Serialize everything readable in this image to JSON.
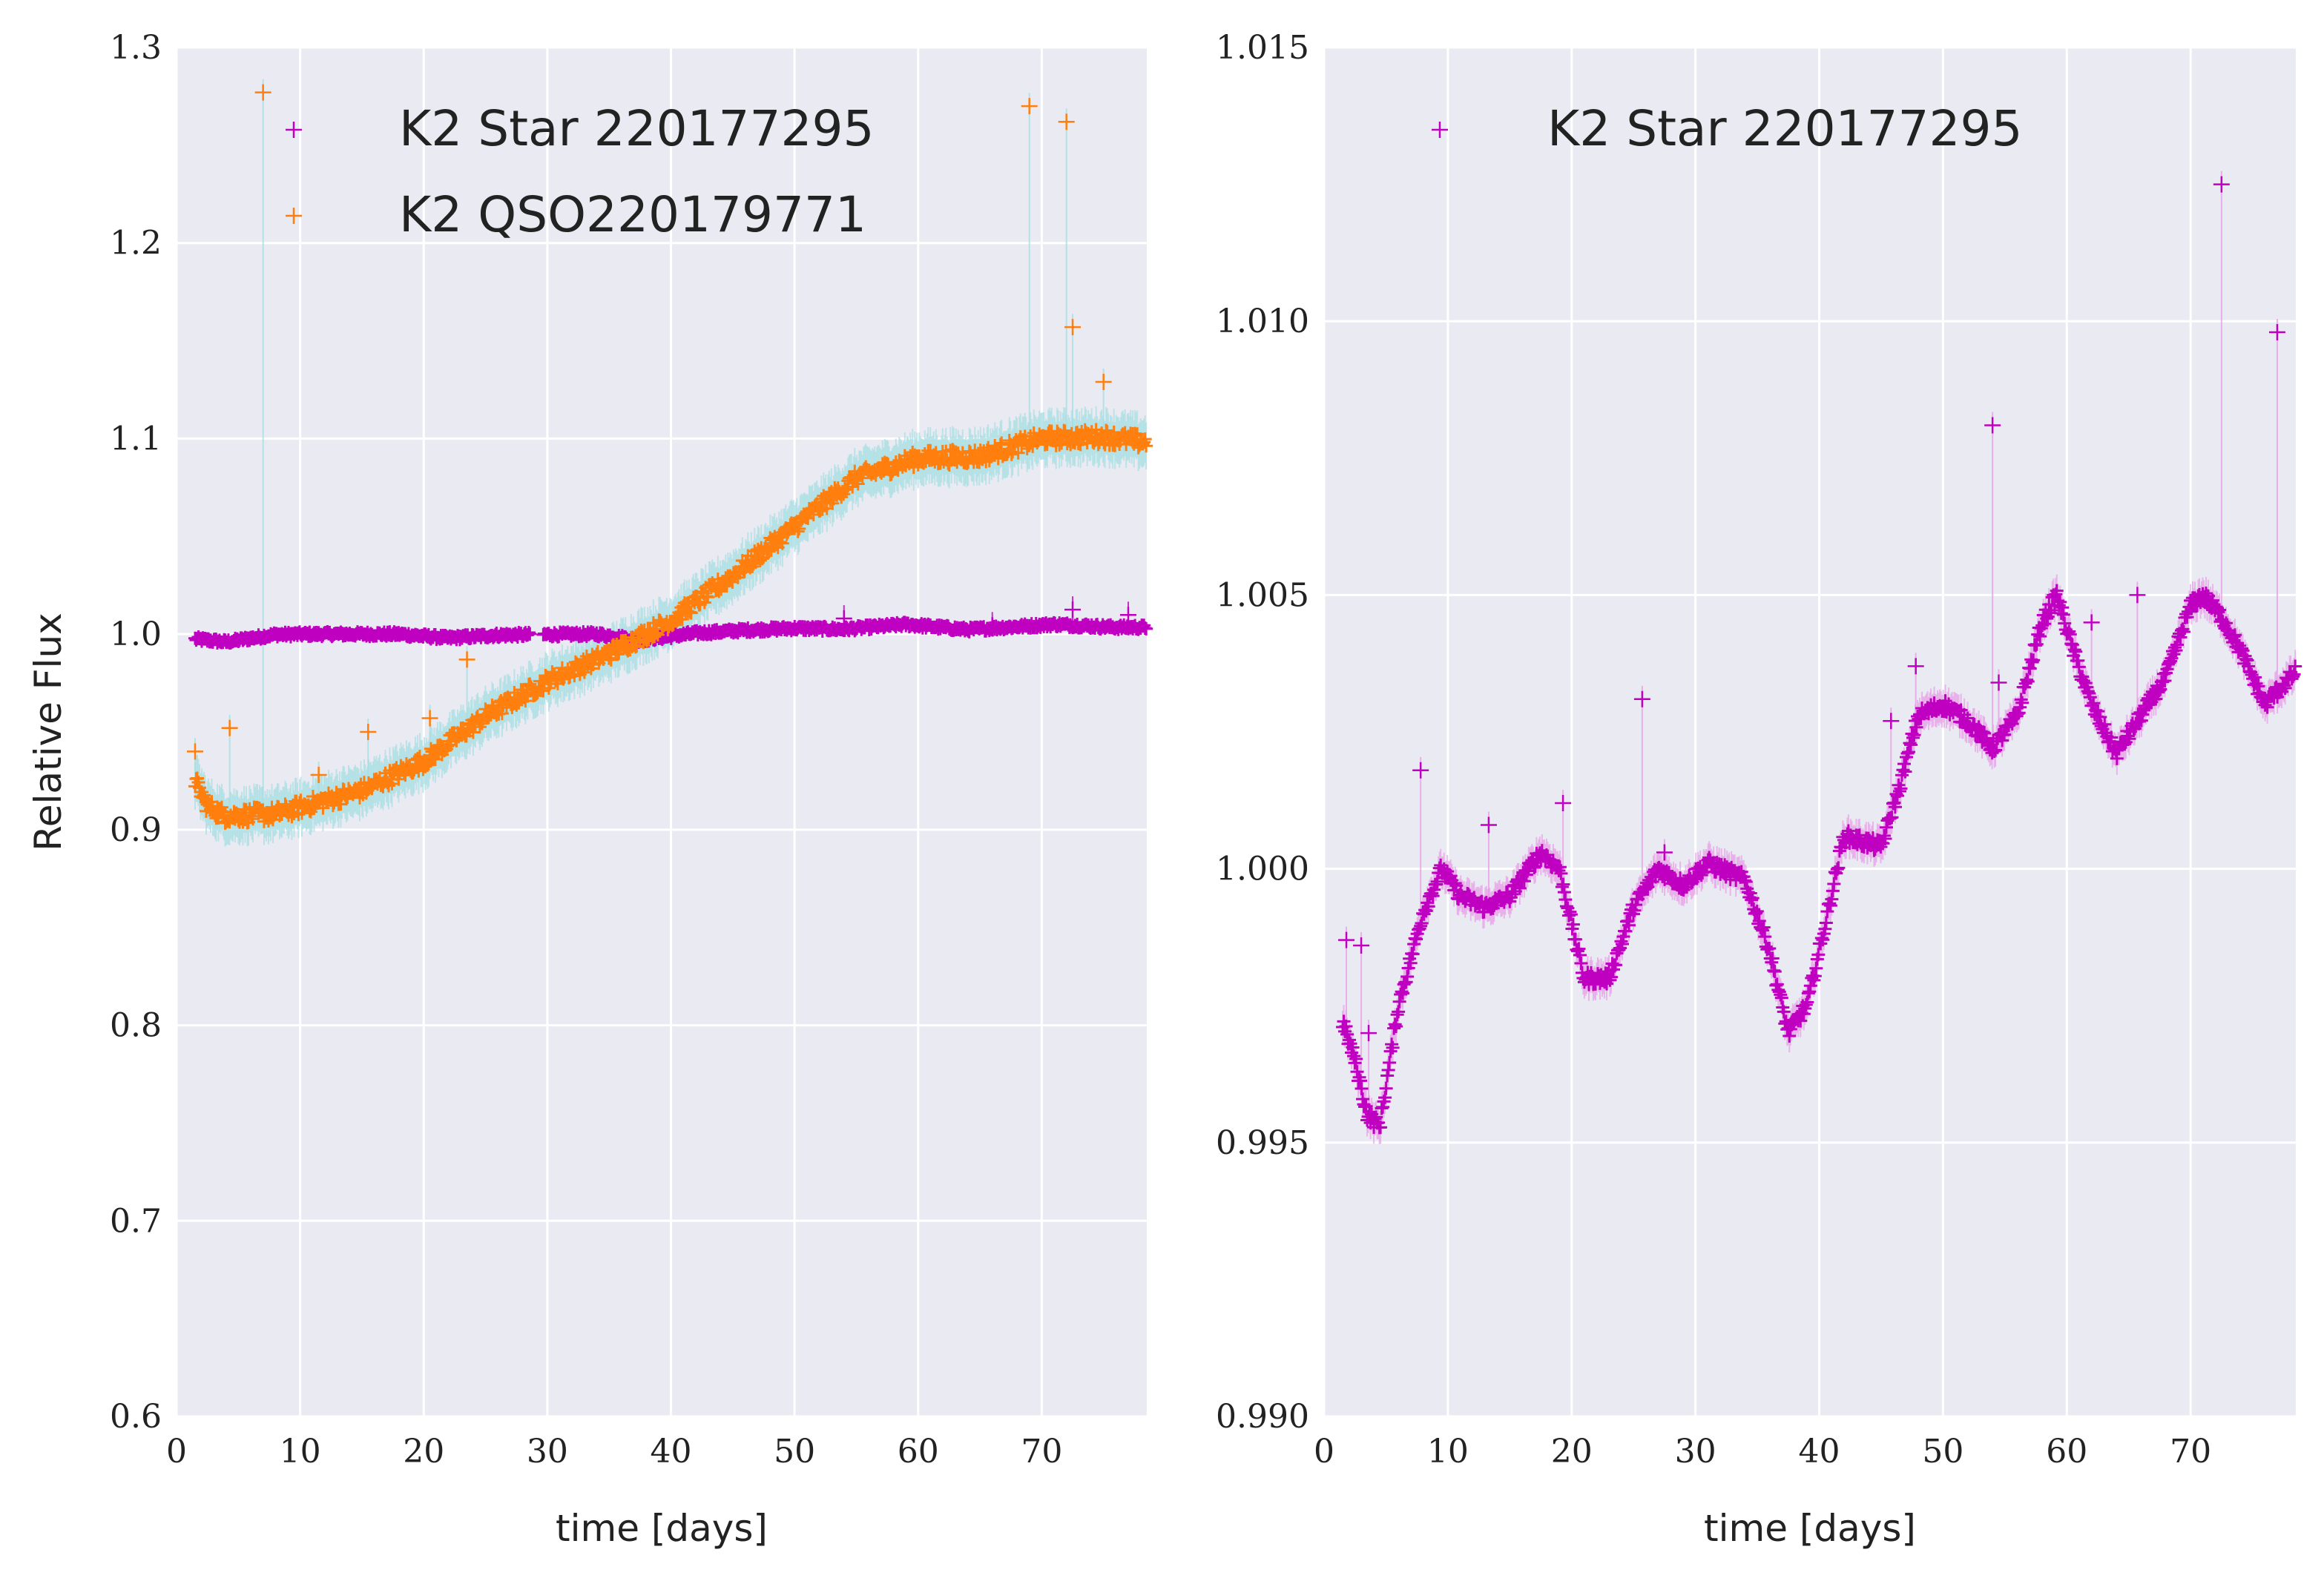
{
  "figure": {
    "background": "#ffffff",
    "axes_face": "#eaeaf2",
    "grid_color": "#ffffff"
  },
  "chart_data": [
    {
      "type": "scatter",
      "title": "",
      "xlabel": "time [days]",
      "ylabel": "Relative Flux",
      "xlim": [
        0,
        78.5
      ],
      "ylim": [
        0.6,
        1.3
      ],
      "xticks": [
        "0",
        "10",
        "20",
        "30",
        "40",
        "50",
        "60",
        "70"
      ],
      "xtick_values": [
        0,
        10,
        20,
        30,
        40,
        50,
        60,
        70
      ],
      "yticks": [
        "0.6",
        "0.7",
        "0.8",
        "0.9",
        "1.0",
        "1.1",
        "1.2",
        "1.3"
      ],
      "ytick_values": [
        0.6,
        0.7,
        0.8,
        0.9,
        1.0,
        1.1,
        1.2,
        1.3
      ],
      "grid": true,
      "legend_position": "top",
      "series": [
        {
          "name": "K2 Star 220177295",
          "color": "#c000c0",
          "errorbar_color": "#c000c0",
          "marker": "plus",
          "trend": [
            [
              1.5,
              0.9975
            ],
            [
              4,
              0.996
            ],
            [
              8,
              0.9998
            ],
            [
              12,
              1.0
            ],
            [
              18,
              1.0
            ],
            [
              22,
              0.998
            ],
            [
              26,
              0.9995
            ],
            [
              30,
              0.9998
            ],
            [
              34,
              1.0
            ],
            [
              37.5,
              0.997
            ],
            [
              42,
              1.0005
            ],
            [
              46,
              1.002
            ],
            [
              50,
              1.003
            ],
            [
              54,
              1.0025
            ],
            [
              59,
              1.005
            ],
            [
              64,
              1.0023
            ],
            [
              71,
              1.005
            ],
            [
              76,
              1.0035
            ],
            [
              78.5,
              1.0035
            ]
          ],
          "outliers": [
            [
              54,
              1.008
            ],
            [
              72.5,
              1.0125
            ],
            [
              77,
              1.0098
            ],
            [
              66,
              1.0045
            ]
          ]
        },
        {
          "name": "K2 QSO220179771",
          "color": "#ff7f0e",
          "errorbar_color": "#a6dfe3",
          "marker": "plus",
          "trend": [
            [
              1.5,
              0.925
            ],
            [
              2.5,
              0.912
            ],
            [
              4,
              0.907
            ],
            [
              8,
              0.908
            ],
            [
              15,
              0.92
            ],
            [
              20,
              0.935
            ],
            [
              25,
              0.958
            ],
            [
              30,
              0.976
            ],
            [
              35,
              0.99
            ],
            [
              40,
              1.007
            ],
            [
              45,
              1.03
            ],
            [
              50,
              1.055
            ],
            [
              55,
              1.08
            ],
            [
              60,
              1.09
            ],
            [
              65,
              1.091
            ],
            [
              70,
              1.1
            ],
            [
              75,
              1.101
            ],
            [
              78.5,
              1.098
            ]
          ],
          "outliers": [
            [
              7,
              1.277
            ],
            [
              69,
              1.27
            ],
            [
              72,
              1.262
            ],
            [
              72.5,
              1.157
            ],
            [
              75,
              1.129
            ],
            [
              4.3,
              0.952
            ],
            [
              15.5,
              0.95
            ],
            [
              20.5,
              0.957
            ],
            [
              23.5,
              0.987
            ],
            [
              1.5,
              0.94
            ],
            [
              11.5,
              0.928
            ]
          ]
        }
      ]
    },
    {
      "type": "scatter",
      "title": "",
      "xlabel": "time [days]",
      "ylabel": "",
      "xlim": [
        0,
        78.5
      ],
      "ylim": [
        0.99,
        1.015
      ],
      "xticks": [
        "0",
        "10",
        "20",
        "30",
        "40",
        "50",
        "60",
        "70"
      ],
      "xtick_values": [
        0,
        10,
        20,
        30,
        40,
        50,
        60,
        70
      ],
      "yticks": [
        "0.990",
        "0.995",
        "1.000",
        "1.005",
        "1.010",
        "1.015"
      ],
      "ytick_values": [
        0.99,
        0.995,
        1.0,
        1.005,
        1.01,
        1.015
      ],
      "grid": true,
      "legend_position": "top",
      "series": [
        {
          "name": "K2 Star 220177295",
          "color": "#c000c0",
          "errorbar_color": "#e8a0e8",
          "marker": "plus",
          "trend": [
            [
              1.5,
              0.9972
            ],
            [
              2.5,
              0.9965
            ],
            [
              3.5,
              0.9955
            ],
            [
              4.5,
              0.9953
            ],
            [
              6,
              0.9975
            ],
            [
              8,
              0.9992
            ],
            [
              9.5,
              1.0
            ],
            [
              11,
              0.9995
            ],
            [
              13,
              0.9993
            ],
            [
              15,
              0.9995
            ],
            [
              17.5,
              1.0003
            ],
            [
              19,
              1.0
            ],
            [
              21,
              0.998
            ],
            [
              23,
              0.998
            ],
            [
              25,
              0.9993
            ],
            [
              27,
              1.0
            ],
            [
              29,
              0.9997
            ],
            [
              31,
              1.0001
            ],
            [
              34,
              0.9998
            ],
            [
              36,
              0.9985
            ],
            [
              37.5,
              0.997
            ],
            [
              39,
              0.9975
            ],
            [
              40.5,
              0.999
            ],
            [
              42,
              1.0006
            ],
            [
              43.5,
              1.0005
            ],
            [
              45,
              1.0004
            ],
            [
              46.5,
              1.0015
            ],
            [
              48,
              1.0028
            ],
            [
              50,
              1.003
            ],
            [
              52,
              1.0027
            ],
            [
              54,
              1.0022
            ],
            [
              56,
              1.0028
            ],
            [
              58,
              1.0045
            ],
            [
              59.2,
              1.005
            ],
            [
              60.5,
              1.004
            ],
            [
              62,
              1.003
            ],
            [
              64,
              1.0021
            ],
            [
              66,
              1.0028
            ],
            [
              68,
              1.0035
            ],
            [
              70,
              1.0048
            ],
            [
              71,
              1.005
            ],
            [
              72.5,
              1.0046
            ],
            [
              74,
              1.004
            ],
            [
              76,
              1.003
            ],
            [
              78.5,
              1.0036
            ]
          ],
          "outliers": [
            [
              1.8,
              0.9987
            ],
            [
              3,
              0.9986
            ],
            [
              3.6,
              0.997
            ],
            [
              7.8,
              1.0018
            ],
            [
              13.3,
              1.0008
            ],
            [
              19.3,
              1.0012
            ],
            [
              25.7,
              1.0031
            ],
            [
              27.5,
              1.0003
            ],
            [
              45.8,
              1.0027
            ],
            [
              47.8,
              1.0037
            ],
            [
              54,
              1.0081
            ],
            [
              54.5,
              1.0034
            ],
            [
              62,
              1.0045
            ],
            [
              65.7,
              1.005
            ],
            [
              72.5,
              1.0125
            ],
            [
              77,
              1.0098
            ]
          ]
        }
      ]
    }
  ]
}
